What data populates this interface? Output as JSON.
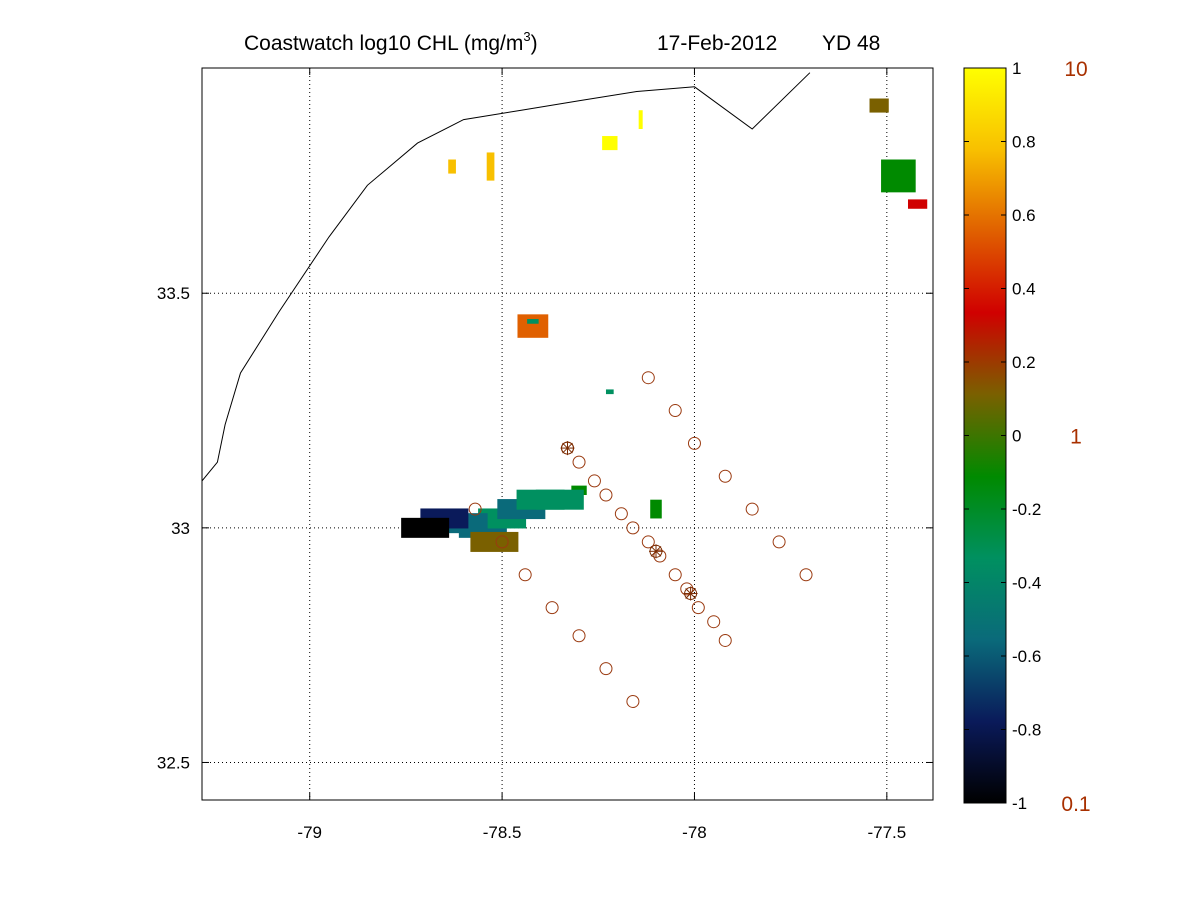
{
  "title": {
    "main": "Coastwatch  log10  CHL (mg/m",
    "superscript": "3",
    "close": ")",
    "date": "17-Feb-2012",
    "yearday": "YD 48"
  },
  "chart_data": {
    "type": "map",
    "xlim": [
      -79.28,
      -77.38
    ],
    "ylim": [
      32.42,
      33.98
    ],
    "xticks": [
      "-79",
      "-78.5",
      "-78",
      "-77.5"
    ],
    "xtick_values": [
      -79,
      -78.5,
      -78,
      -77.5
    ],
    "yticks": [
      "32.5",
      "33",
      "33.5"
    ],
    "ytick_values": [
      32.5,
      33,
      33.5
    ],
    "grid": true,
    "coastline": [
      [
        -77.7,
        33.97
      ],
      [
        -77.85,
        33.85
      ],
      [
        -78.0,
        33.94
      ],
      [
        -78.15,
        33.93
      ],
      [
        -78.3,
        33.91
      ],
      [
        -78.45,
        33.89
      ],
      [
        -78.6,
        33.87
      ],
      [
        -78.72,
        33.82
      ],
      [
        -78.85,
        33.73
      ],
      [
        -78.95,
        33.62
      ],
      [
        -79.08,
        33.46
      ],
      [
        -79.18,
        33.33
      ],
      [
        -79.22,
        33.22
      ],
      [
        -79.24,
        33.14
      ],
      [
        -79.28,
        33.1
      ]
    ],
    "colorbar": {
      "ticks": [
        "1",
        "0.8",
        "0.6",
        "0.4",
        "0.2",
        "0",
        "-0.2",
        "-0.4",
        "-0.6",
        "-0.8",
        "-1"
      ],
      "tick_values": [
        1,
        0.8,
        0.6,
        0.4,
        0.2,
        0,
        -0.2,
        -0.4,
        -0.6,
        -0.8,
        -1
      ],
      "range": [
        -1,
        1
      ],
      "concentration_labels": [
        {
          "text": "10",
          "value": 1
        },
        {
          "text": "1",
          "value": 0
        },
        {
          "text": "0.1",
          "value": -1
        }
      ],
      "colors": [
        "#000000",
        "#0a1a5a",
        "#0a6a7a",
        "#009060",
        "#008a00",
        "#7a6000",
        "#d00000",
        "#e06000",
        "#f8c000",
        "#ffff00"
      ]
    },
    "chl_patches": [
      {
        "lon": -78.63,
        "lat": 33.77,
        "w": 0.02,
        "h": 0.03,
        "v": 0.6
      },
      {
        "lon": -78.53,
        "lat": 33.77,
        "w": 0.02,
        "h": 0.06,
        "v": 0.75
      },
      {
        "lon": -78.22,
        "lat": 33.82,
        "w": 0.04,
        "h": 0.03,
        "v": 1.0
      },
      {
        "lon": -78.14,
        "lat": 33.87,
        "w": 0.01,
        "h": 0.04,
        "v": 1.0
      },
      {
        "lon": -78.42,
        "lat": 33.43,
        "w": 0.08,
        "h": 0.05,
        "v": 0.55
      },
      {
        "lon": -78.42,
        "lat": 33.44,
        "w": 0.03,
        "h": 0.01,
        "v": -0.3
      },
      {
        "lon": -77.52,
        "lat": 33.9,
        "w": 0.05,
        "h": 0.03,
        "v": 0.0
      },
      {
        "lon": -77.47,
        "lat": 33.75,
        "w": 0.09,
        "h": 0.07,
        "v": -0.15
      },
      {
        "lon": -77.42,
        "lat": 33.69,
        "w": 0.05,
        "h": 0.02,
        "v": 0.2
      },
      {
        "lon": -78.1,
        "lat": 33.04,
        "w": 0.03,
        "h": 0.04,
        "v": -0.15
      },
      {
        "lon": -78.3,
        "lat": 33.08,
        "w": 0.04,
        "h": 0.02,
        "v": -0.15
      },
      {
        "lon": -78.22,
        "lat": 33.29,
        "w": 0.02,
        "h": 0.01,
        "v": -0.3
      }
    ],
    "plume": [
      {
        "lon": -78.55,
        "lat": 33.0,
        "v": -0.45
      },
      {
        "lon": -78.5,
        "lat": 33.02,
        "v": -0.3
      },
      {
        "lon": -78.45,
        "lat": 33.04,
        "v": -0.5
      },
      {
        "lon": -78.6,
        "lat": 33.01,
        "v": -0.6
      },
      {
        "lon": -78.65,
        "lat": 33.02,
        "v": -0.7
      },
      {
        "lon": -78.4,
        "lat": 33.06,
        "v": -0.35
      },
      {
        "lon": -78.35,
        "lat": 33.06,
        "v": -0.25
      },
      {
        "lon": -78.52,
        "lat": 32.97,
        "v": 0.1
      },
      {
        "lon": -78.7,
        "lat": 33.0,
        "v": -0.9
      }
    ],
    "stations": {
      "lines": [
        [
          [
            -78.12,
            33.32
          ],
          [
            -78.05,
            33.25
          ],
          [
            -78.0,
            33.18
          ],
          [
            -77.92,
            33.11
          ],
          [
            -77.85,
            33.04
          ],
          [
            -77.78,
            32.97
          ],
          [
            -77.71,
            32.9
          ]
        ],
        [
          [
            -78.33,
            33.17
          ],
          [
            -78.3,
            33.14
          ],
          [
            -78.26,
            33.1
          ],
          [
            -78.23,
            33.07
          ],
          [
            -78.19,
            33.03
          ],
          [
            -78.16,
            33.0
          ],
          [
            -78.12,
            32.97
          ],
          [
            -78.09,
            32.94
          ],
          [
            -78.05,
            32.9
          ],
          [
            -78.02,
            32.87
          ],
          [
            -77.99,
            32.83
          ],
          [
            -77.95,
            32.8
          ],
          [
            -77.92,
            32.76
          ]
        ],
        [
          [
            -78.57,
            33.04
          ],
          [
            -78.5,
            32.97
          ],
          [
            -78.44,
            32.9
          ],
          [
            -78.37,
            32.83
          ],
          [
            -78.3,
            32.77
          ],
          [
            -78.23,
            32.7
          ],
          [
            -78.16,
            32.63
          ]
        ]
      ],
      "starred": [
        [
          -78.33,
          33.17
        ],
        [
          -78.1,
          32.95
        ],
        [
          -78.01,
          32.86
        ]
      ]
    }
  }
}
